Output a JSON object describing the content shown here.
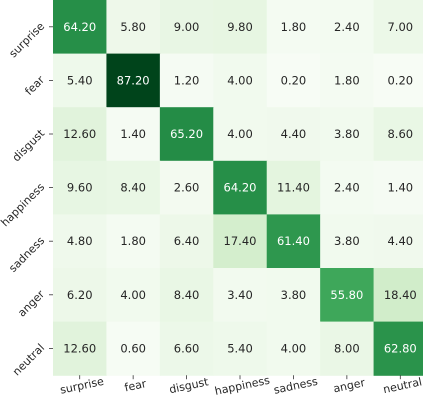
{
  "chart_data": {
    "type": "heatmap",
    "title": "",
    "xlabel": "",
    "ylabel": "",
    "row_labels": [
      "surprise",
      "fear",
      "disgust",
      "happiness",
      "sadness",
      "anger",
      "neutral"
    ],
    "col_labels": [
      "surprise",
      "fear",
      "disgust",
      "happiness",
      "sadness",
      "anger",
      "neutral"
    ],
    "values": [
      [
        64.2,
        5.8,
        9.0,
        9.8,
        1.8,
        2.4,
        7.0
      ],
      [
        5.4,
        87.2,
        1.2,
        4.0,
        0.2,
        1.8,
        0.2
      ],
      [
        12.6,
        1.4,
        65.2,
        4.0,
        4.4,
        3.8,
        8.6
      ],
      [
        9.6,
        8.4,
        2.6,
        64.2,
        11.4,
        2.4,
        1.4
      ],
      [
        4.8,
        1.8,
        6.4,
        17.4,
        61.4,
        3.8,
        4.4
      ],
      [
        6.2,
        4.0,
        8.4,
        3.4,
        3.8,
        55.8,
        18.4
      ],
      [
        12.6,
        0.6,
        6.6,
        5.4,
        4.0,
        8.0,
        62.8
      ]
    ],
    "value_format": "2 decimals",
    "colormap": "Greens",
    "colorbar": false,
    "grid": false
  }
}
